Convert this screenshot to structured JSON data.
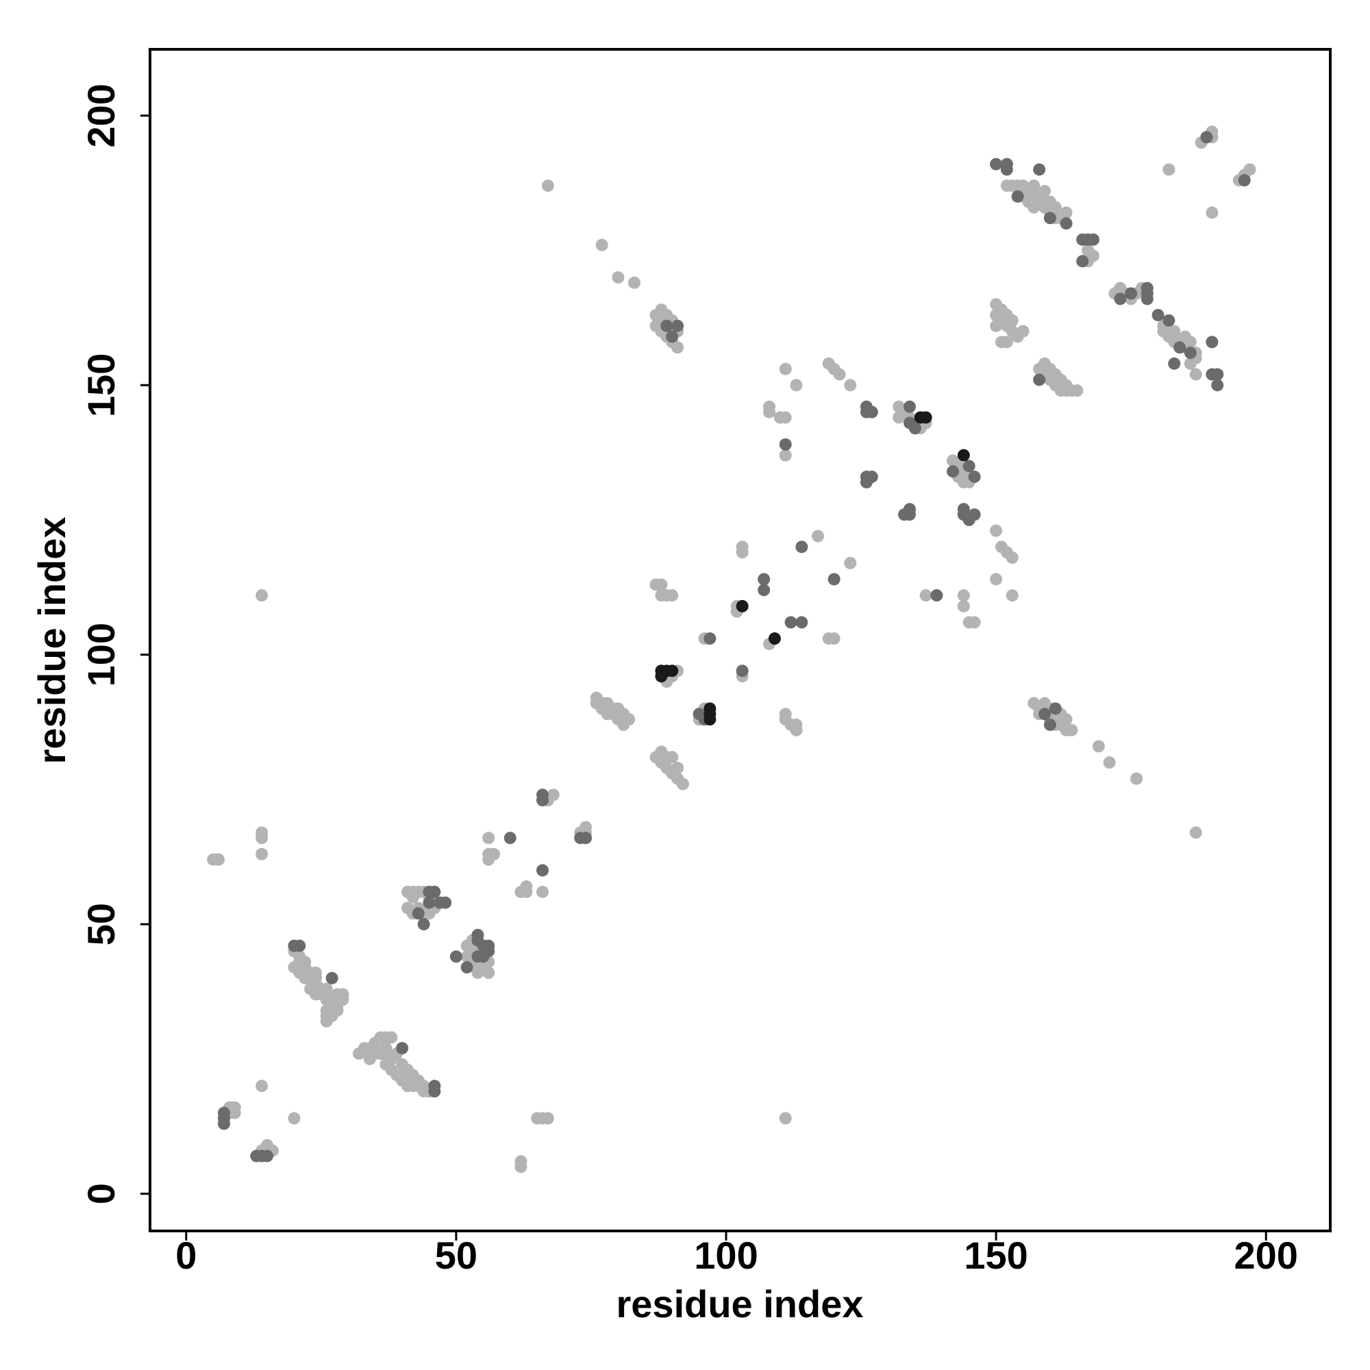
{
  "chart_data": {
    "type": "scatter",
    "x_label": "residue index",
    "y_label": "residue index",
    "xlim": [
      -6.7,
      211.9
    ],
    "ylim": [
      -6.9,
      212.3
    ],
    "xticks": [
      0,
      50,
      100,
      150,
      200
    ],
    "yticks": [
      0,
      50,
      100,
      150,
      200
    ],
    "series": [
      {
        "color": "#b3b3b3",
        "x": [
          5,
          6,
          8,
          8,
          9,
          9,
          14,
          15,
          16,
          14,
          14,
          14,
          14,
          14,
          20,
          20,
          21,
          21,
          22,
          22,
          23,
          23,
          24,
          24,
          24,
          25,
          25,
          26,
          26,
          26,
          26,
          27,
          27,
          28,
          28,
          29,
          29,
          20,
          21,
          22,
          23,
          24,
          26,
          27,
          28,
          32,
          33,
          34,
          35,
          36,
          37,
          38,
          36,
          37,
          38,
          39,
          40,
          40,
          41,
          41,
          42,
          42,
          43,
          43,
          44,
          44,
          45,
          39,
          38,
          37,
          40,
          41,
          42,
          35,
          34,
          41,
          42,
          43,
          44,
          41,
          42,
          43,
          44,
          45,
          42,
          45,
          46,
          52,
          53,
          53,
          54,
          55,
          56,
          56,
          52,
          53,
          56,
          56,
          57,
          56,
          62,
          62,
          62,
          63,
          63,
          65,
          66,
          67,
          66,
          67,
          68,
          73,
          74,
          74,
          67,
          76,
          77,
          77,
          78,
          78,
          79,
          80,
          80,
          81,
          81,
          82,
          76,
          79,
          77,
          80,
          83,
          87,
          87,
          88,
          88,
          89,
          90,
          90,
          91,
          91,
          88,
          89,
          90,
          87,
          88,
          88,
          89,
          89,
          90,
          90,
          91,
          91,
          92,
          87,
          88,
          88,
          89,
          90,
          89,
          91,
          90,
          96,
          95,
          96,
          103,
          103,
          103,
          102,
          102,
          108,
          111,
          110,
          111,
          111,
          108,
          108,
          113,
          111,
          111,
          112,
          113,
          113,
          111,
          117,
          119,
          120,
          119,
          120,
          121,
          123,
          123,
          132,
          133,
          134,
          135,
          136,
          137,
          132,
          142,
          143,
          144,
          145,
          145,
          144,
          143,
          137,
          144,
          144,
          145,
          146,
          150,
          151,
          152,
          153,
          150,
          153,
          150,
          150,
          151,
          151,
          152,
          152,
          153,
          153,
          154,
          155,
          151,
          152,
          150,
          152,
          153,
          154,
          155,
          156,
          157,
          157,
          158,
          158,
          159,
          159,
          160,
          160,
          161,
          161,
          162,
          163,
          167,
          168,
          167,
          155,
          156,
          157,
          158,
          159,
          160,
          160,
          161,
          161,
          162,
          163,
          163,
          164,
          165,
          159,
          162,
          157,
          158,
          159,
          160,
          160,
          161,
          162,
          162,
          163,
          163,
          164,
          158,
          169,
          171,
          176,
          187,
          172,
          173,
          174,
          175,
          176,
          177,
          181,
          181,
          182,
          183,
          184,
          185,
          186,
          187,
          187,
          186,
          187,
          185,
          183,
          182,
          188,
          189,
          190,
          190,
          190,
          195,
          196,
          197
        ],
        "values": [
          62,
          62,
          15,
          16,
          16,
          15,
          8,
          9,
          8,
          20,
          63,
          66,
          67,
          111,
          14,
          45,
          44,
          43,
          43,
          42,
          41,
          40,
          41,
          40,
          39,
          38,
          37,
          38,
          36,
          34,
          33,
          35,
          36,
          37,
          35,
          37,
          36,
          42,
          41,
          40,
          38,
          37,
          32,
          33,
          34,
          26,
          27,
          27,
          28,
          29,
          29,
          29,
          26,
          24,
          23,
          22,
          22,
          21,
          21,
          20,
          20,
          21,
          20,
          21,
          19,
          20,
          19,
          26,
          25,
          27,
          24,
          23,
          22,
          26,
          25,
          56,
          56,
          56,
          56,
          53,
          52,
          53,
          52,
          52,
          55,
          55,
          53,
          46,
          45,
          43,
          41,
          42,
          41,
          43,
          44,
          47,
          62,
          63,
          63,
          66,
          5,
          6,
          56,
          56,
          57,
          14,
          14,
          14,
          56,
          73,
          74,
          67,
          68,
          67,
          187,
          92,
          91,
          90,
          89,
          91,
          90,
          90,
          88,
          89,
          87,
          88,
          91,
          89,
          176,
          170,
          169,
          163,
          161,
          164,
          162,
          159,
          158,
          162,
          157,
          160,
          160,
          163,
          160,
          81,
          82,
          80,
          79,
          81,
          81,
          78,
          77,
          79,
          76,
          113,
          113,
          111,
          111,
          111,
          95,
          97,
          96,
          90,
          88,
          103,
          96,
          119,
          120,
          109,
          108,
          102,
          153,
          144,
          144,
          137,
          146,
          145,
          150,
          89,
          88,
          87,
          87,
          86,
          14,
          122,
          103,
          103,
          154,
          153,
          152,
          150,
          117,
          146,
          145,
          144,
          143,
          142,
          143,
          144,
          136,
          135,
          134,
          133,
          132,
          132,
          133,
          111,
          111,
          109,
          106,
          106,
          123,
          120,
          119,
          118,
          114,
          111,
          165,
          163,
          162,
          164,
          161,
          163,
          160,
          162,
          159,
          160,
          158,
          158,
          161,
          187,
          187,
          187,
          187,
          186,
          187,
          185,
          185,
          184,
          183,
          186,
          184,
          182,
          181,
          183,
          181,
          182,
          175,
          174,
          173,
          185,
          184,
          183,
          153,
          154,
          153,
          151,
          150,
          152,
          151,
          150,
          149,
          149,
          149,
          152,
          149,
          91,
          90,
          91,
          90,
          88,
          87,
          87,
          89,
          86,
          88,
          86,
          89,
          83,
          80,
          77,
          67,
          167,
          168,
          167,
          166,
          167,
          168,
          161,
          160,
          159,
          160,
          158,
          159,
          158,
          156,
          155,
          154,
          152,
          157,
          158,
          190,
          195,
          196,
          197,
          196,
          182,
          188,
          189,
          190
        ]
      },
      {
        "color": "#6b6b6b",
        "x": [
          7,
          7,
          7,
          13,
          14,
          15,
          20,
          21,
          27,
          40,
          46,
          46,
          45,
          46,
          47,
          48,
          44,
          43,
          45,
          50,
          52,
          54,
          54,
          55,
          56,
          56,
          54,
          55,
          60,
          66,
          66,
          66,
          73,
          74,
          89,
          90,
          91,
          95,
          96,
          97,
          103,
          107,
          107,
          111,
          112,
          114,
          114,
          120,
          126,
          126,
          127,
          126,
          127,
          126,
          133,
          134,
          134,
          134,
          134,
          135,
          142,
          146,
          145,
          144,
          145,
          146,
          144,
          139,
          150,
          152,
          152,
          154,
          158,
          160,
          163,
          166,
          167,
          168,
          166,
          158,
          159,
          161,
          160,
          173,
          175,
          178,
          178,
          178,
          180,
          182,
          183,
          186,
          190,
          190,
          191,
          191,
          184,
          189,
          196
        ],
        "values": [
          13,
          14,
          15,
          7,
          7,
          7,
          46,
          46,
          40,
          27,
          19,
          20,
          56,
          56,
          54,
          54,
          50,
          52,
          54,
          44,
          42,
          48,
          47,
          46,
          46,
          45,
          44,
          44,
          66,
          60,
          73,
          74,
          66,
          66,
          161,
          159,
          161,
          89,
          88,
          103,
          97,
          114,
          112,
          139,
          106,
          106,
          120,
          114,
          146,
          145,
          145,
          133,
          133,
          132,
          126,
          127,
          126,
          146,
          143,
          142,
          134,
          133,
          135,
          127,
          125,
          126,
          126,
          111,
          191,
          191,
          190,
          185,
          190,
          181,
          180,
          177,
          177,
          177,
          173,
          151,
          89,
          90,
          87,
          166,
          167,
          167,
          168,
          166,
          163,
          162,
          154,
          156,
          158,
          152,
          152,
          150,
          157,
          196,
          188
        ]
      },
      {
        "color": "#1a1a1a",
        "x": [
          88,
          89,
          90,
          88,
          97,
          97,
          97,
          103,
          109,
          136,
          137,
          144
        ],
        "values": [
          97,
          97,
          97,
          96,
          88,
          89,
          90,
          109,
          103,
          144,
          144,
          137
        ]
      }
    ]
  }
}
